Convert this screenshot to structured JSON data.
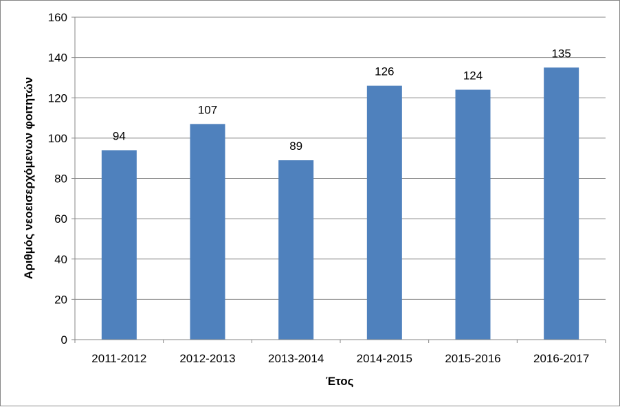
{
  "chart_data": {
    "type": "bar",
    "categories": [
      "2011-2012",
      "2012-2013",
      "2013-2014",
      "2014-2015",
      "2015-2016",
      "2016-2017"
    ],
    "values": [
      94,
      107,
      89,
      126,
      124,
      135
    ],
    "data_labels": [
      "94",
      "107",
      "89",
      "126",
      "124",
      "135"
    ],
    "title": "",
    "xlabel": "Έτος",
    "ylabel": "Αριθμός νεοεισερχόμενων φοιτητών",
    "ylim": [
      0,
      160
    ],
    "yticks": [
      0,
      20,
      40,
      60,
      80,
      100,
      120,
      140,
      160
    ],
    "ytick_labels": [
      "0",
      "20",
      "40",
      "60",
      "80",
      "100",
      "120",
      "140",
      "160"
    ],
    "grid": true,
    "legend": "none",
    "colors": {
      "bar": "#4F81BD",
      "grid": "#868686",
      "axis": "#868686"
    }
  }
}
